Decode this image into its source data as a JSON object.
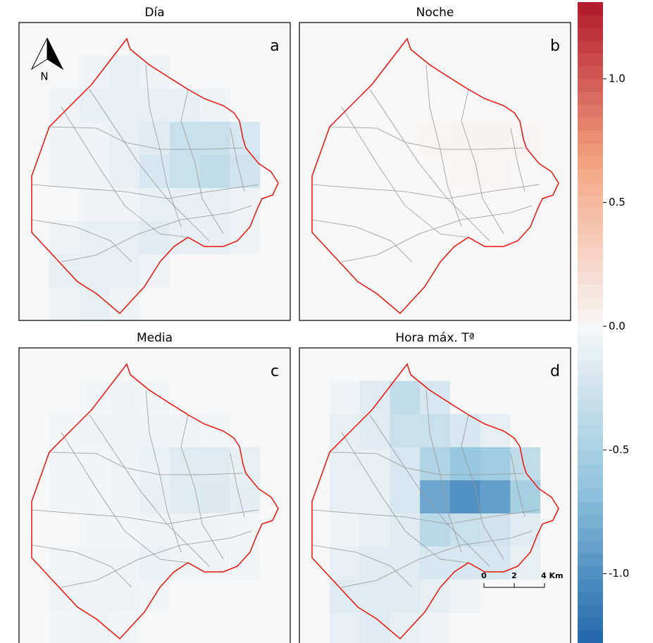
{
  "chart_data": {
    "type": "heatmap-panels",
    "panels": [
      {
        "title": "Día",
        "letter": "a",
        "grid": [
          [
            0,
            0,
            0,
            0,
            0,
            0,
            0,
            0,
            0
          ],
          [
            0,
            0,
            -0.05,
            -0.1,
            -0.05,
            0,
            0,
            0,
            0
          ],
          [
            0,
            -0.05,
            -0.1,
            -0.1,
            -0.1,
            -0.1,
            -0.05,
            0,
            0
          ],
          [
            0,
            -0.05,
            -0.05,
            -0.1,
            -0.15,
            -0.3,
            -0.3,
            -0.2,
            0
          ],
          [
            0,
            -0.05,
            -0.05,
            -0.1,
            -0.2,
            -0.3,
            -0.35,
            -0.25,
            0
          ],
          [
            0,
            0,
            -0.05,
            -0.05,
            -0.1,
            -0.1,
            -0.1,
            -0.05,
            0
          ],
          [
            0,
            -0.05,
            -0.1,
            -0.1,
            -0.15,
            -0.1,
            -0.1,
            -0.05,
            0
          ],
          [
            0,
            -0.1,
            -0.1,
            -0.1,
            -0.05,
            0,
            0,
            0,
            0
          ],
          [
            0,
            -0.05,
            -0.1,
            -0.05,
            0,
            0,
            0,
            0,
            0
          ]
        ]
      },
      {
        "title": "Noche",
        "letter": "b",
        "grid": [
          [
            0,
            0,
            0,
            0,
            0,
            0,
            0,
            0,
            0
          ],
          [
            0,
            0,
            0,
            0,
            0,
            0,
            0,
            0,
            0
          ],
          [
            0,
            0,
            0,
            0,
            0,
            0,
            0,
            0,
            0
          ],
          [
            0,
            0,
            0,
            0,
            0.02,
            0.03,
            0.03,
            0.02,
            0
          ],
          [
            0,
            0,
            0,
            0,
            0,
            0.02,
            0.02,
            0,
            0
          ],
          [
            0,
            0,
            0,
            0,
            0,
            0,
            0,
            0,
            0
          ],
          [
            0,
            0,
            0,
            0,
            0,
            0,
            0,
            0,
            0
          ],
          [
            0,
            0,
            0,
            0,
            0,
            0,
            0,
            0,
            0
          ],
          [
            0,
            0,
            0,
            0,
            0,
            0,
            0,
            0,
            0
          ]
        ]
      },
      {
        "title": "Media",
        "letter": "c",
        "grid": [
          [
            0,
            0,
            0,
            0,
            0,
            0,
            0,
            0,
            0
          ],
          [
            0,
            0,
            -0.03,
            -0.05,
            -0.03,
            0,
            0,
            0,
            0
          ],
          [
            0,
            -0.03,
            -0.05,
            -0.05,
            -0.05,
            -0.05,
            -0.03,
            0,
            0
          ],
          [
            0,
            -0.03,
            -0.03,
            -0.05,
            -0.08,
            -0.15,
            -0.15,
            -0.1,
            0
          ],
          [
            0,
            -0.03,
            -0.03,
            -0.05,
            -0.1,
            -0.15,
            -0.18,
            -0.12,
            0
          ],
          [
            0,
            0,
            -0.03,
            -0.03,
            -0.05,
            -0.05,
            -0.05,
            -0.03,
            0
          ],
          [
            0,
            -0.03,
            -0.05,
            -0.05,
            -0.08,
            -0.05,
            -0.05,
            -0.03,
            0
          ],
          [
            0,
            -0.05,
            -0.05,
            -0.05,
            -0.03,
            0,
            0,
            0,
            0
          ],
          [
            0,
            -0.03,
            -0.05,
            -0.03,
            0,
            0,
            0,
            0,
            0
          ]
        ]
      },
      {
        "title": "Hora máx. Tª",
        "letter": "d",
        "grid": [
          [
            0,
            0,
            0,
            0,
            0,
            0,
            0,
            0,
            0
          ],
          [
            0,
            -0.05,
            -0.15,
            -0.35,
            -0.2,
            0,
            0,
            0,
            0
          ],
          [
            0,
            -0.1,
            -0.15,
            -0.3,
            -0.3,
            -0.2,
            -0.1,
            0,
            0
          ],
          [
            0,
            -0.1,
            -0.1,
            -0.2,
            -0.45,
            -0.6,
            -0.55,
            -0.35,
            0
          ],
          [
            0,
            -0.1,
            -0.1,
            -0.2,
            -0.85,
            -1.0,
            -0.9,
            -0.5,
            0
          ],
          [
            0,
            -0.05,
            -0.1,
            -0.15,
            -0.4,
            -0.3,
            -0.25,
            -0.15,
            0
          ],
          [
            0,
            -0.1,
            -0.15,
            -0.15,
            -0.2,
            -0.2,
            -0.2,
            -0.1,
            0
          ],
          [
            0,
            -0.15,
            -0.15,
            -0.15,
            -0.1,
            -0.05,
            0,
            0,
            0
          ],
          [
            0,
            -0.1,
            -0.15,
            -0.1,
            -0.05,
            0,
            0,
            0,
            0
          ]
        ]
      }
    ],
    "north_label": "N",
    "scale_bar": {
      "labels": [
        "0",
        "2",
        "4 Km"
      ]
    },
    "colorbar": {
      "lim": [
        -1.28,
        1.31
      ],
      "ticks": [
        {
          "value": 1.0,
          "label": "1.0"
        },
        0.5,
        {
          "value": 0.0,
          "label": "0.0"
        },
        -0.5,
        {
          "value": -1.0,
          "label": "-1.0"
        }
      ]
    }
  }
}
